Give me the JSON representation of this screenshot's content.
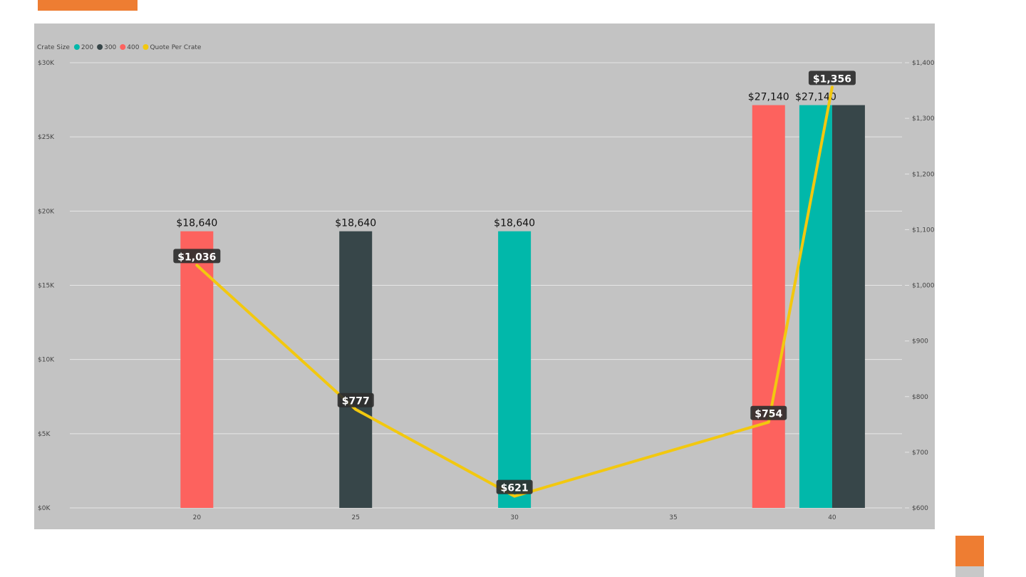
{
  "chart_data": {
    "type": "bar",
    "legend": {
      "title": "Crate Size",
      "items": [
        {
          "name": "200",
          "color": "#01b8aa"
        },
        {
          "name": "300",
          "color": "#374649"
        },
        {
          "name": "400",
          "color": "#fd625e"
        },
        {
          "name": "Quote Per Crate",
          "color": "#f2c80f"
        }
      ]
    },
    "x_ticks": [
      20,
      25,
      30,
      35,
      40
    ],
    "xlim": [
      16,
      42.2
    ],
    "y_left": {
      "min": 0,
      "max": 30000,
      "ticks": [
        "$0K",
        "$5K",
        "$10K",
        "$15K",
        "$20K",
        "$25K",
        "$30K"
      ]
    },
    "y_right": {
      "min": 600,
      "max": 1400,
      "ticks": [
        "$600",
        "$700",
        "$800",
        "$900",
        "$1,000",
        "$1,100",
        "$1,200",
        "$1,300",
        "$1,400"
      ]
    },
    "bars": [
      {
        "x": 20,
        "series": "400",
        "value": 18640,
        "label": "$18,640",
        "color": "#fd625e"
      },
      {
        "x": 25,
        "series": "300",
        "value": 18640,
        "label": "$18,640",
        "color": "#374649"
      },
      {
        "x": 30,
        "series": "200",
        "value": 18640,
        "label": "$18,640",
        "color": "#01b8aa"
      },
      {
        "x": 38,
        "series": "400",
        "value": 27140,
        "label": "$27,140",
        "color": "#fd625e"
      },
      {
        "x": 40,
        "series": "200",
        "value": 27140,
        "label": "$27,140",
        "color": "#01b8aa"
      },
      {
        "x": 40,
        "series": "300",
        "value": 27140,
        "label": "",
        "color": "#374649"
      }
    ],
    "line": {
      "name": "Quote Per Crate",
      "color": "#f2c80f",
      "points": [
        {
          "x": 20,
          "value": 1036,
          "label": "$1,036"
        },
        {
          "x": 25,
          "value": 777,
          "label": "$777"
        },
        {
          "x": 30,
          "value": 621,
          "label": "$621"
        },
        {
          "x": 38,
          "value": 754,
          "label": "$754"
        },
        {
          "x": 40,
          "value": 1356,
          "label": "$1,356"
        }
      ]
    },
    "grid": true,
    "legend_position": "top-left"
  }
}
